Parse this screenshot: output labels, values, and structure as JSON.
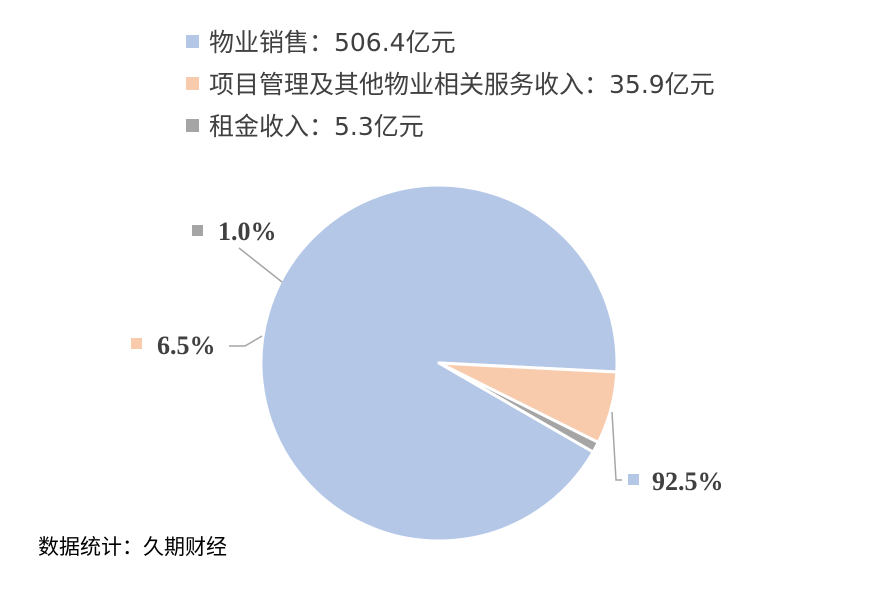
{
  "chart_data": {
    "type": "pie",
    "series": [
      {
        "name": "物业销售",
        "legend_label": "物业销售：506.4亿元",
        "value": 506.4,
        "percent_label": "92.5%",
        "color": "#b4c7e7"
      },
      {
        "name": "项目管理及其他物业相关服务收入",
        "legend_label": "项目管理及其他物业相关服务收入：35.9亿元",
        "value": 35.9,
        "percent_label": "6.5%",
        "color": "#f8cbad"
      },
      {
        "name": "租金收入",
        "legend_label": "租金收入：5.3亿元",
        "value": 5.3,
        "percent_label": "1.0%",
        "color": "#a5a5a5"
      }
    ],
    "legend_position": "top"
  },
  "source": "数据统计：久期财经"
}
